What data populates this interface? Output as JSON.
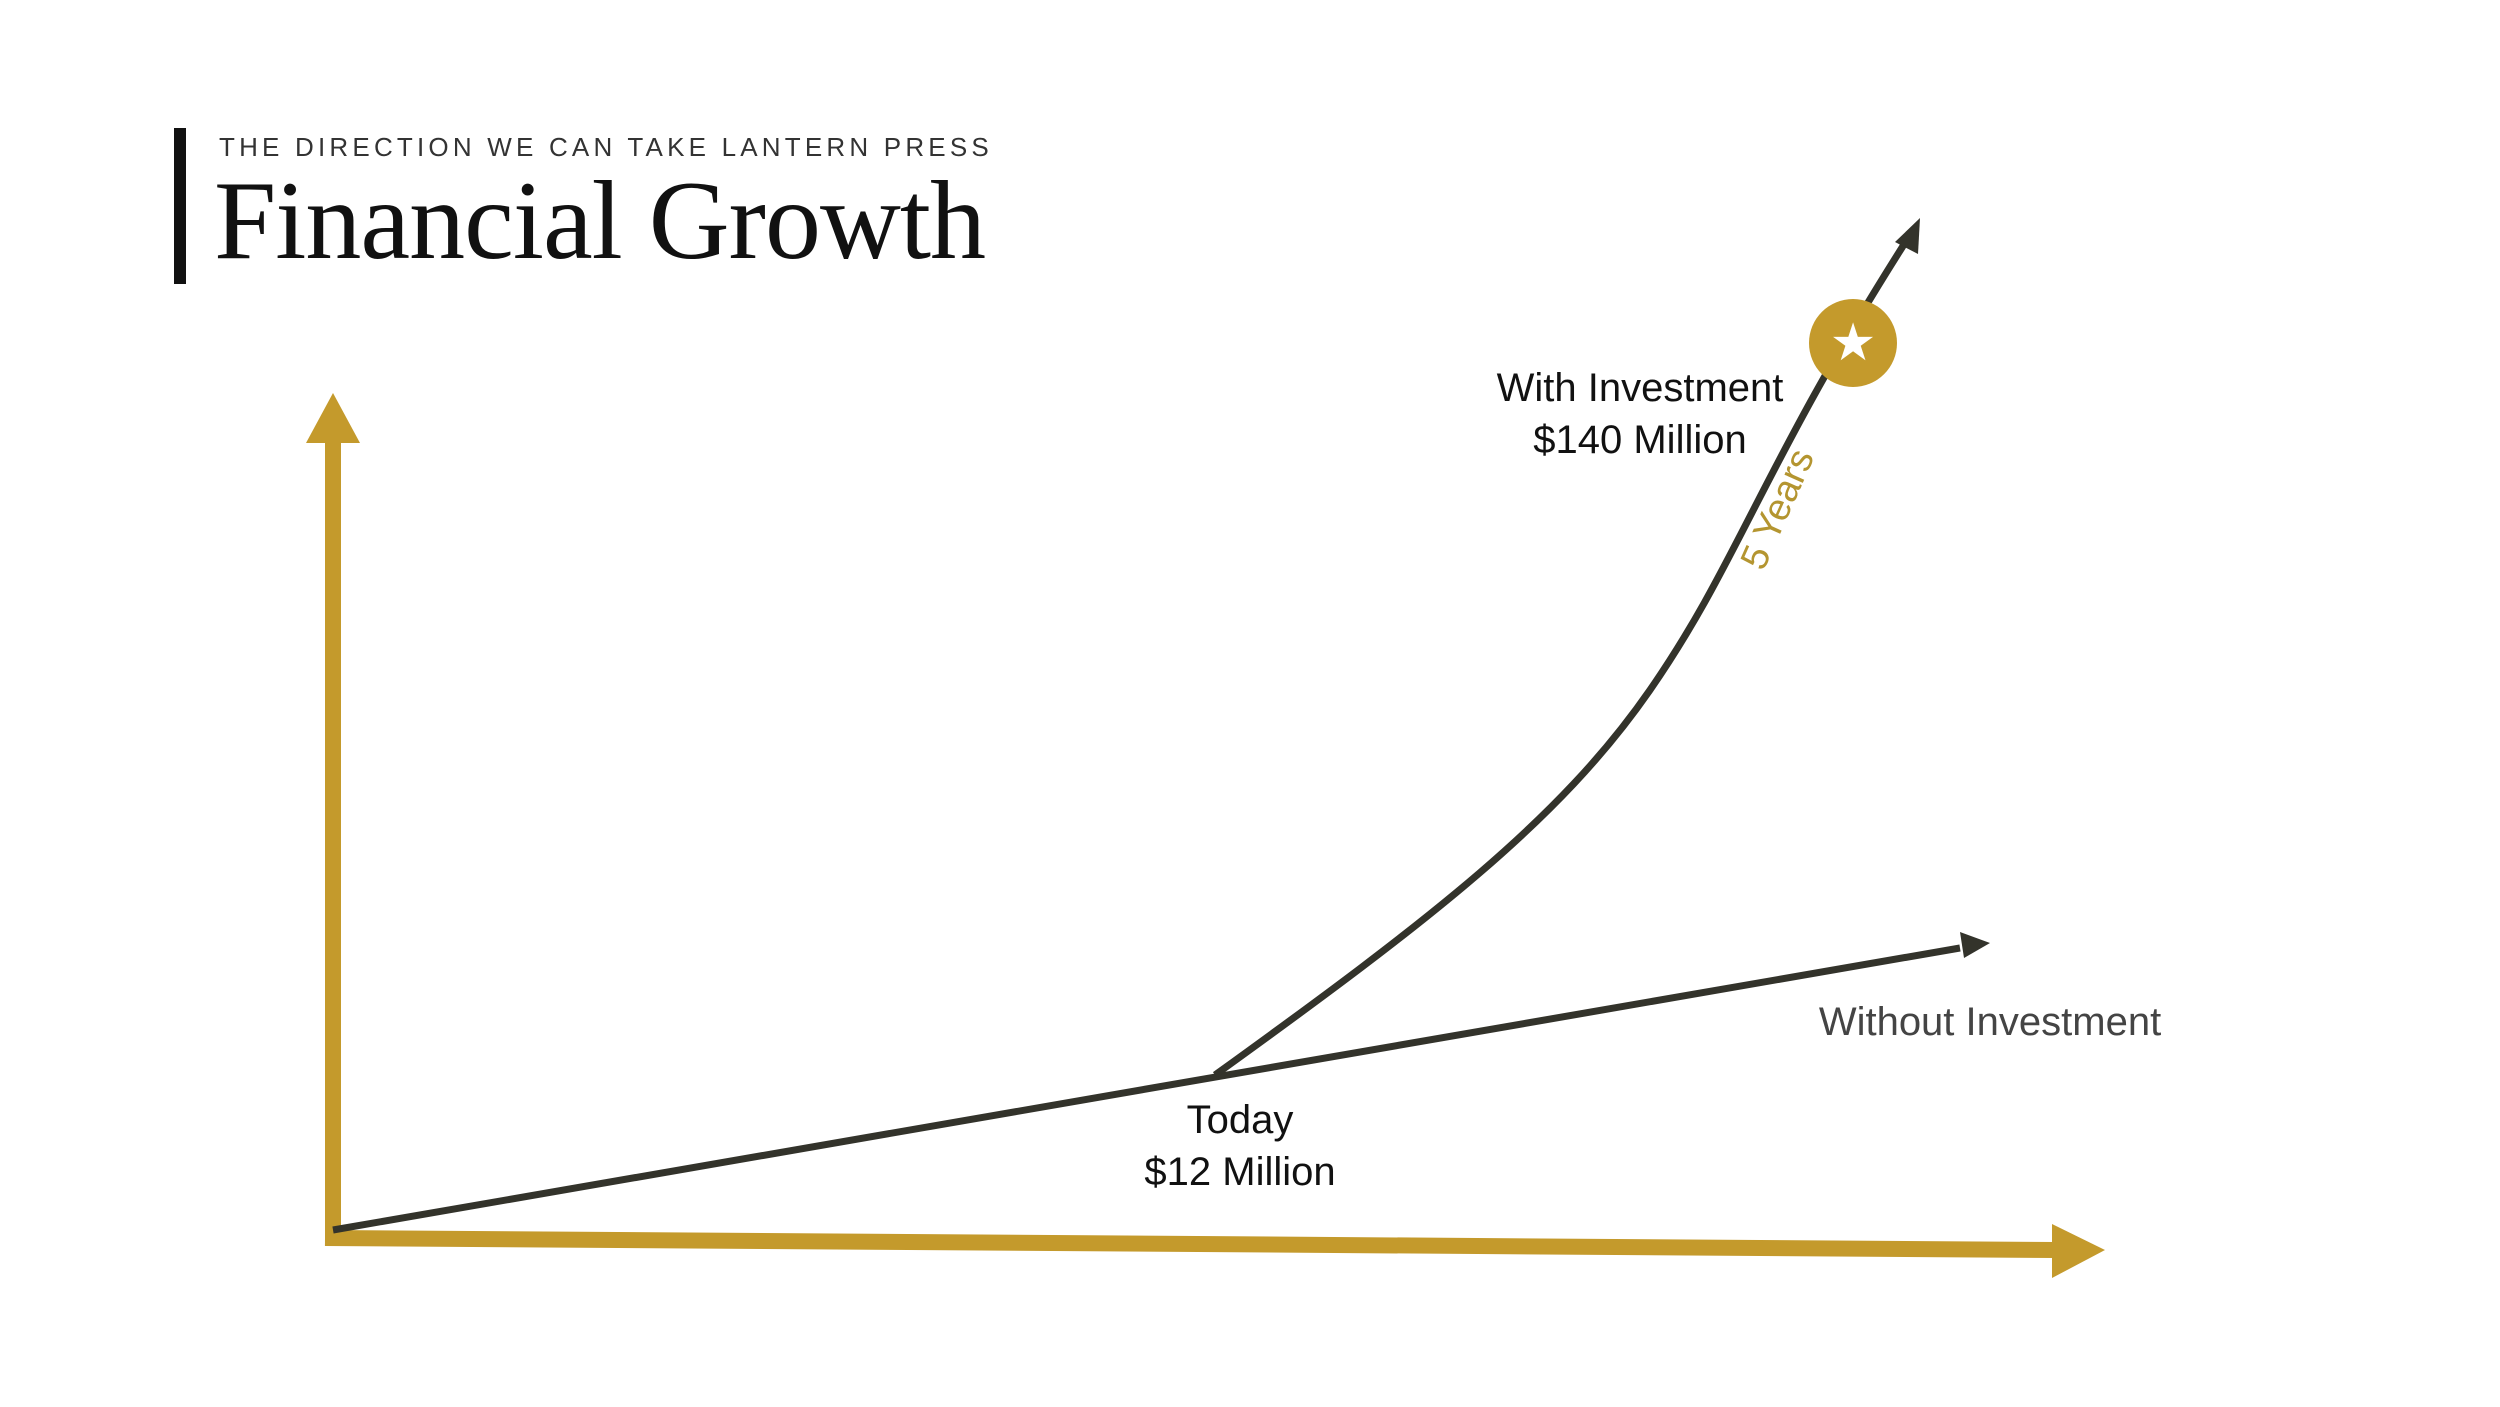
{
  "header": {
    "eyebrow": "THE DIRECTION WE CAN TAKE LANTERN PRESS",
    "title": "Financial Growth"
  },
  "diagram": {
    "with_investment": {
      "label": "With Investment",
      "value": "$140 Million"
    },
    "today": {
      "label": "Today",
      "value": "$12 Million"
    },
    "without_investment": {
      "label": "Without Investment"
    },
    "duration_label": "5 Years",
    "milestone_icon": "star-icon"
  },
  "colors": {
    "axis": "#c49a2c",
    "trend_line": "#33332b",
    "accent_text": "#b49530",
    "badge": "#c49a2c"
  }
}
